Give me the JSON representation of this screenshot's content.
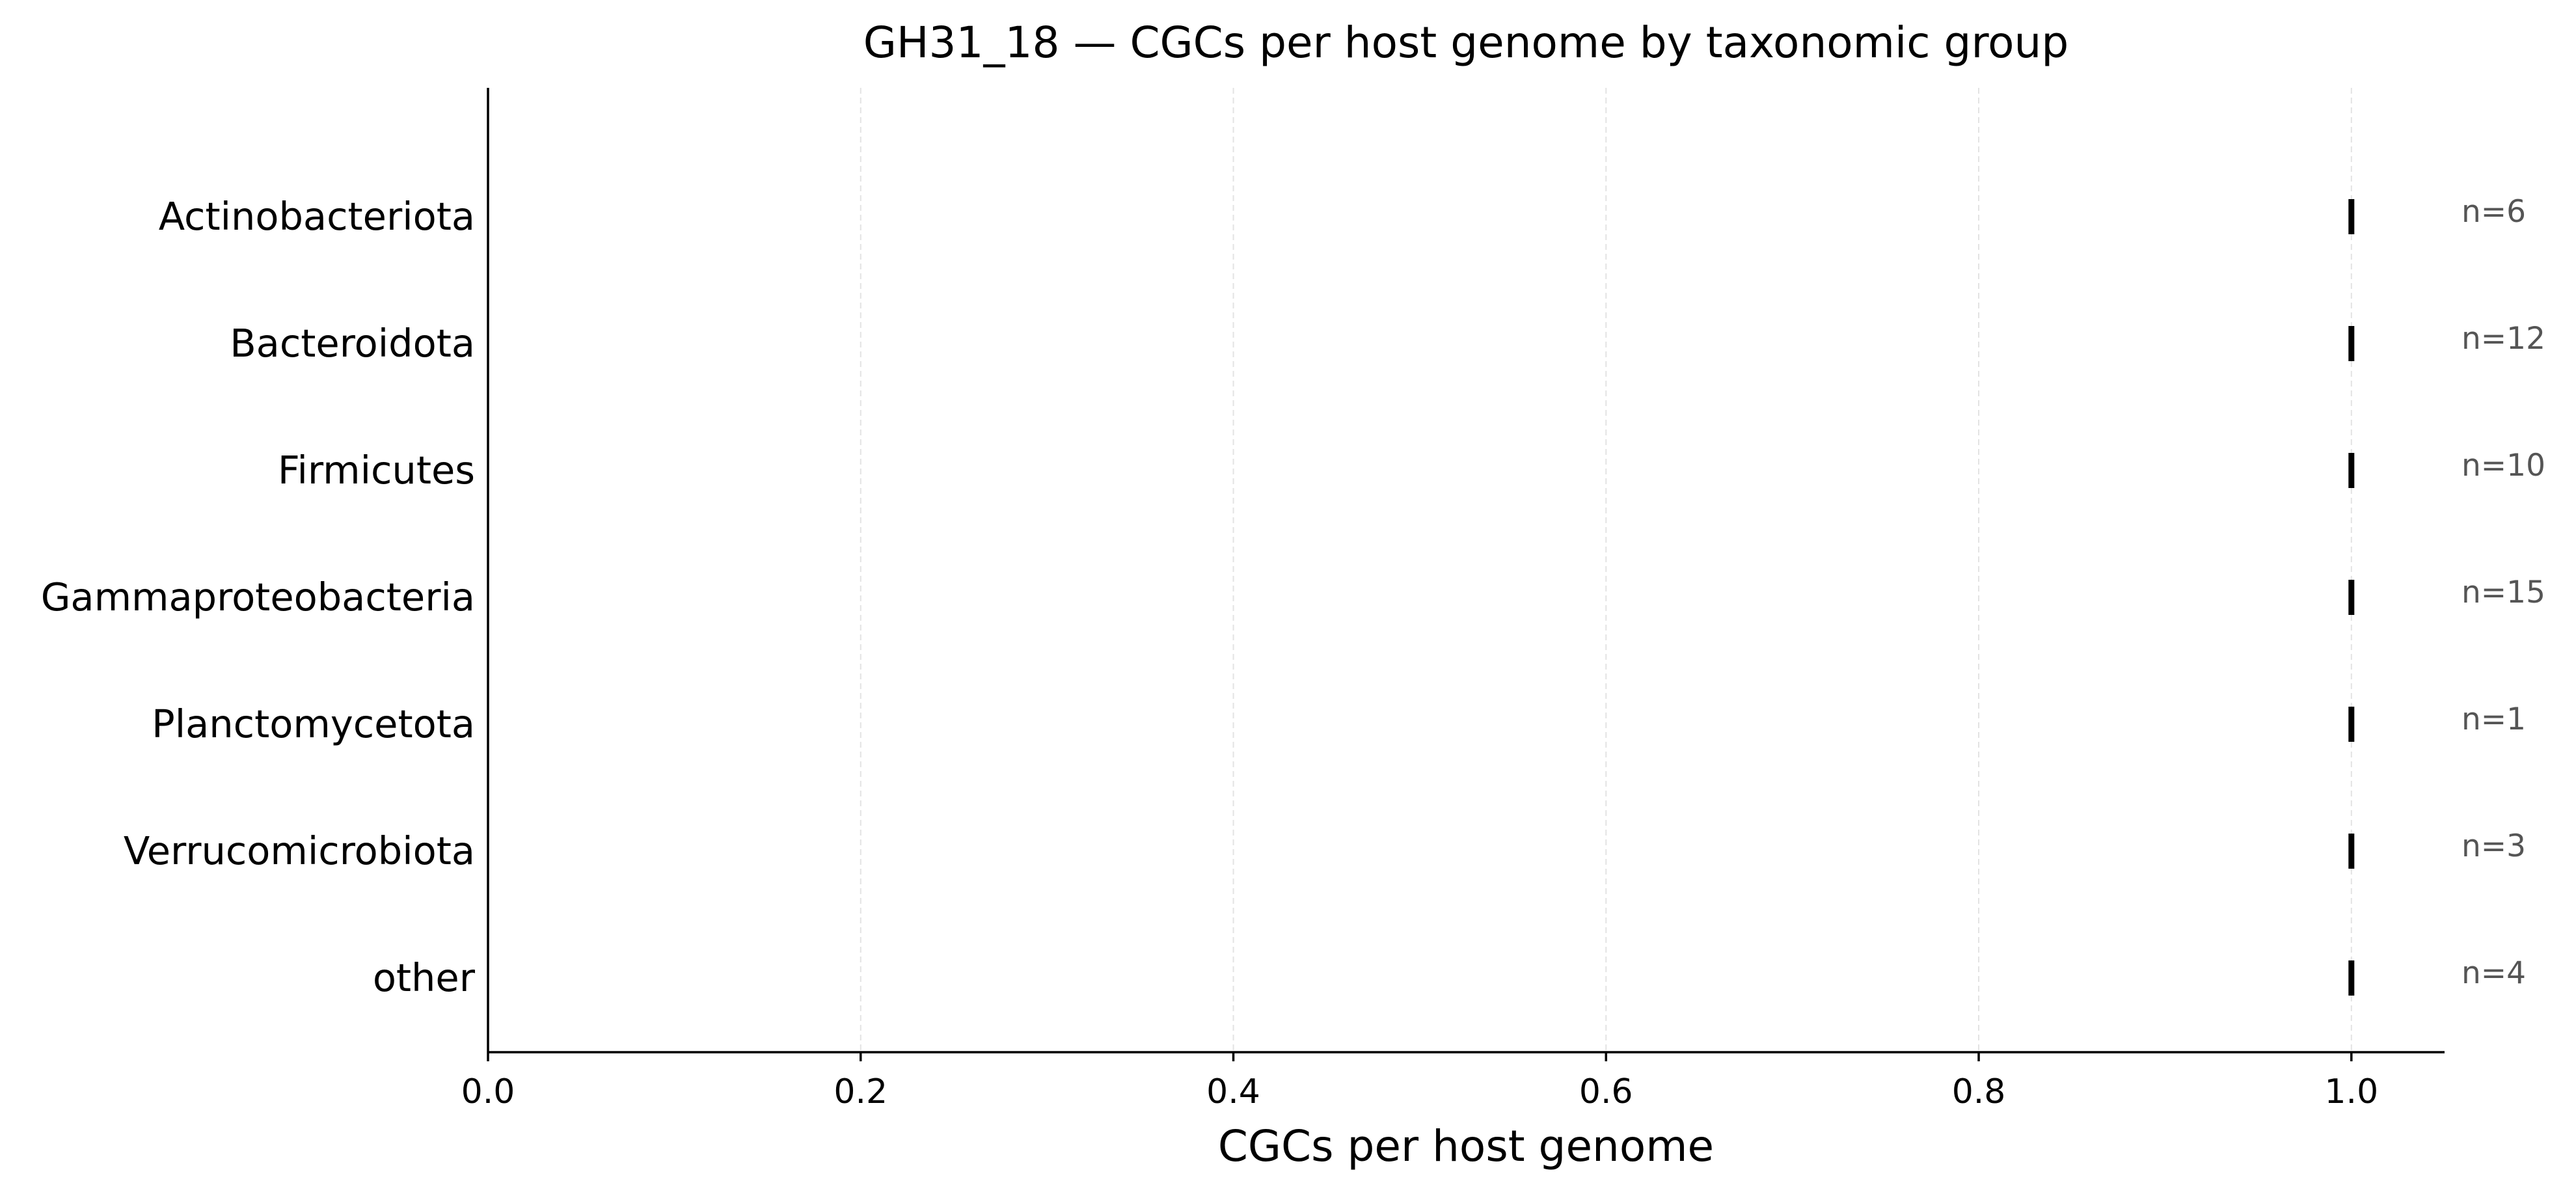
{
  "chart_data": {
    "type": "scatter",
    "title": "GH31_18 — CGCs per host genome by taxonomic group",
    "xlabel": "CGCs per host genome",
    "ylabel": "",
    "xlim": [
      0.0,
      1.05
    ],
    "xticks": [
      0.0,
      0.2,
      0.4,
      0.6,
      0.8,
      1.0
    ],
    "xtick_labels": [
      "0.0",
      "0.2",
      "0.4",
      "0.6",
      "0.8",
      "1.0"
    ],
    "grid": "vertical dashed",
    "marker": "vertical line",
    "categories": [
      "Actinobacteriota",
      "Bacteroidota",
      "Firmicutes",
      "Gammaproteobacteria",
      "Planctomycetota",
      "Verrucomicrobiota",
      "other"
    ],
    "values": [
      1.0,
      1.0,
      1.0,
      1.0,
      1.0,
      1.0,
      1.0
    ],
    "counts": [
      "n=6",
      "n=12",
      "n=10",
      "n=15",
      "n=1",
      "n=3",
      "n=4"
    ]
  }
}
